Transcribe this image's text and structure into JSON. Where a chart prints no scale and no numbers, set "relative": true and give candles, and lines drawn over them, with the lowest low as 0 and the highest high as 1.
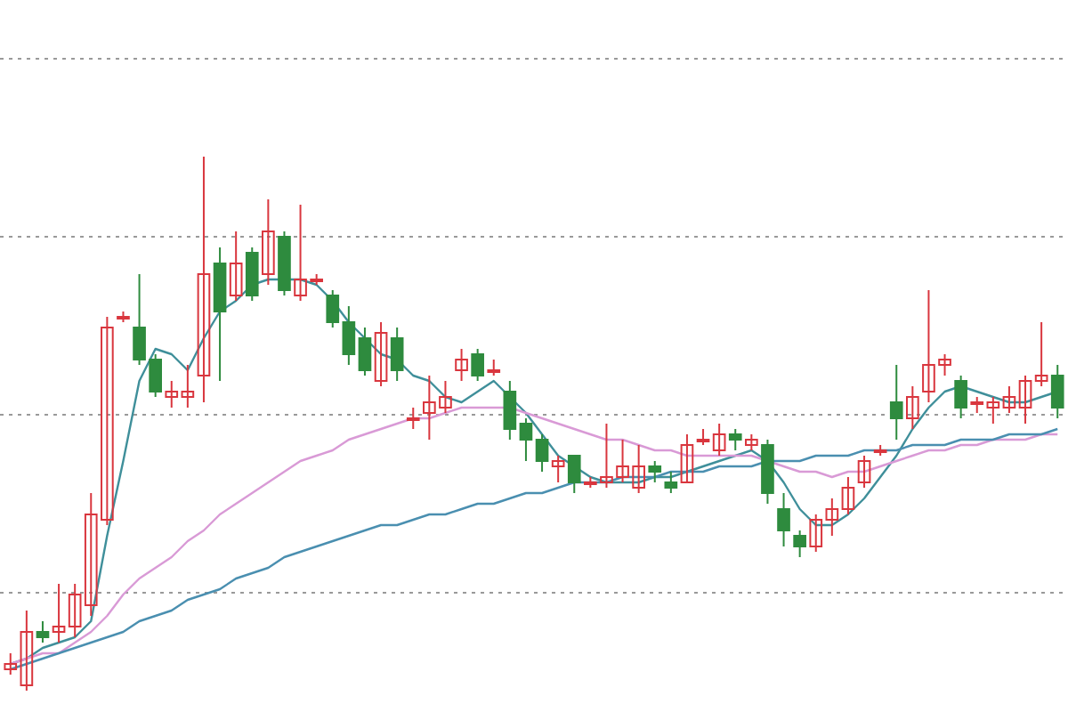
{
  "chart_data": {
    "type": "candlestick",
    "relative": true,
    "grid": "y",
    "marker": "none",
    "categories": [
      null,
      null,
      null,
      null,
      null,
      null,
      null,
      null,
      null,
      null,
      null,
      null,
      null,
      null,
      null,
      null,
      null,
      null,
      null,
      null,
      null,
      null,
      null,
      null,
      null,
      null,
      null,
      null,
      null,
      null,
      null,
      null,
      null,
      null,
      null,
      null,
      null,
      null,
      null,
      null,
      null,
      null,
      null,
      null,
      null,
      null,
      null,
      null,
      null,
      null,
      null,
      null,
      null,
      null,
      null,
      null,
      null,
      null,
      null,
      null,
      null,
      null,
      null,
      null,
      null,
      null
    ],
    "ohlc": [
      [
        0.04,
        0.07,
        0.03,
        0.05
      ],
      [
        0.01,
        0.15,
        0,
        0.11
      ],
      [
        0.11,
        0.13,
        0.09,
        0.1
      ],
      [
        0.11,
        0.2,
        0.09,
        0.12
      ],
      [
        0.12,
        0.2,
        0.1,
        0.18
      ],
      [
        0.16,
        0.37,
        0.14,
        0.33
      ],
      [
        0.32,
        0.7,
        0.31,
        0.68
      ],
      [
        0.7,
        0.71,
        0.69,
        0.7
      ],
      [
        0.68,
        0.78,
        0.61,
        0.62
      ],
      [
        0.62,
        0.63,
        0.55,
        0.56
      ],
      [
        0.55,
        0.58,
        0.53,
        0.56
      ],
      [
        0.55,
        0.61,
        0.53,
        0.56
      ],
      [
        0.59,
        1,
        0.54,
        0.78
      ],
      [
        0.8,
        0.83,
        0.58,
        0.71
      ],
      [
        0.74,
        0.86,
        0.73,
        0.8
      ],
      [
        0.82,
        0.83,
        0.73,
        0.74
      ],
      [
        0.78,
        0.92,
        0.76,
        0.86
      ],
      [
        0.85,
        0.86,
        0.74,
        0.75
      ],
      [
        0.74,
        0.91,
        0.73,
        0.77
      ],
      [
        0.77,
        0.78,
        0.76,
        0.77
      ],
      [
        0.74,
        0.75,
        0.68,
        0.69
      ],
      [
        0.69,
        0.72,
        0.61,
        0.63
      ],
      [
        0.66,
        0.68,
        0.59,
        0.6
      ],
      [
        0.58,
        0.69,
        0.57,
        0.67
      ],
      [
        0.66,
        0.68,
        0.58,
        0.6
      ],
      [
        0.51,
        0.53,
        0.49,
        0.51
      ],
      [
        0.52,
        0.59,
        0.47,
        0.54
      ],
      [
        0.53,
        0.58,
        0.52,
        0.55
      ],
      [
        0.6,
        0.64,
        0.58,
        0.62
      ],
      [
        0.63,
        0.64,
        0.58,
        0.59
      ],
      [
        0.6,
        0.62,
        0.59,
        0.6
      ],
      [
        0.56,
        0.58,
        0.47,
        0.49
      ],
      [
        0.5,
        0.51,
        0.43,
        0.47
      ],
      [
        0.47,
        0.48,
        0.41,
        0.43
      ],
      [
        0.42,
        0.44,
        0.39,
        0.43
      ],
      [
        0.44,
        0.44,
        0.37,
        0.39
      ],
      [
        0.39,
        0.4,
        0.38,
        0.39
      ],
      [
        0.39,
        0.5,
        0.38,
        0.4
      ],
      [
        0.4,
        0.47,
        0.39,
        0.42
      ],
      [
        0.38,
        0.46,
        0.37,
        0.42
      ],
      [
        0.42,
        0.43,
        0.39,
        0.41
      ],
      [
        0.39,
        0.41,
        0.37,
        0.38
      ],
      [
        0.39,
        0.48,
        0.39,
        0.46
      ],
      [
        0.47,
        0.49,
        0.46,
        0.47
      ],
      [
        0.45,
        0.5,
        0.44,
        0.48
      ],
      [
        0.48,
        0.49,
        0.45,
        0.47
      ],
      [
        0.46,
        0.48,
        0.45,
        0.47
      ],
      [
        0.46,
        0.47,
        0.35,
        0.37
      ],
      [
        0.34,
        0.37,
        0.27,
        0.3
      ],
      [
        0.29,
        0.3,
        0.25,
        0.27
      ],
      [
        0.27,
        0.33,
        0.26,
        0.32
      ],
      [
        0.32,
        0.36,
        0.29,
        0.34
      ],
      [
        0.34,
        0.4,
        0.33,
        0.38
      ],
      [
        0.39,
        0.44,
        0.38,
        0.43
      ],
      [
        0.45,
        0.46,
        0.44,
        0.45
      ],
      [
        0.54,
        0.61,
        0.47,
        0.51
      ],
      [
        0.51,
        0.57,
        0.49,
        0.55
      ],
      [
        0.56,
        0.75,
        0.54,
        0.61
      ],
      [
        0.61,
        0.63,
        0.59,
        0.62
      ],
      [
        0.58,
        0.59,
        0.51,
        0.53
      ],
      [
        0.54,
        0.55,
        0.52,
        0.54
      ],
      [
        0.53,
        0.55,
        0.5,
        0.54
      ],
      [
        0.53,
        0.57,
        0.52,
        0.55
      ],
      [
        0.53,
        0.59,
        0.5,
        0.58
      ],
      [
        0.58,
        0.69,
        0.57,
        0.59
      ],
      [
        0.59,
        0.61,
        0.51,
        0.53
      ]
    ],
    "series": [
      {
        "type": "line",
        "color": "#3f8f9a",
        "values": [
          0.05,
          0.06,
          0.08,
          0.09,
          0.1,
          0.13,
          0.29,
          0.43,
          0.58,
          0.64,
          0.63,
          0.6,
          0.66,
          0.71,
          0.73,
          0.76,
          0.77,
          0.77,
          0.77,
          0.76,
          0.73,
          0.69,
          0.66,
          0.63,
          0.62,
          0.59,
          0.58,
          0.55,
          0.54,
          0.56,
          0.58,
          0.55,
          0.52,
          0.48,
          0.44,
          0.42,
          0.4,
          0.39,
          0.39,
          0.39,
          0.4,
          0.4,
          0.41,
          0.42,
          0.43,
          0.44,
          0.45,
          0.43,
          0.39,
          0.34,
          0.31,
          0.31,
          0.33,
          0.36,
          0.4,
          0.44,
          0.49,
          0.53,
          0.56,
          0.57,
          0.56,
          0.55,
          0.54,
          0.54,
          0.55,
          0.56
        ]
      },
      {
        "type": "line",
        "color": "#d99ad6",
        "values": [
          0.05,
          0.06,
          0.07,
          0.07,
          0.09,
          0.11,
          0.14,
          0.18,
          0.21,
          0.23,
          0.25,
          0.28,
          0.3,
          0.33,
          0.35,
          0.37,
          0.39,
          0.41,
          0.43,
          0.44,
          0.45,
          0.47,
          0.48,
          0.49,
          0.5,
          0.51,
          0.51,
          0.52,
          0.53,
          0.53,
          0.53,
          0.53,
          0.52,
          0.51,
          0.5,
          0.49,
          0.48,
          0.47,
          0.47,
          0.46,
          0.45,
          0.45,
          0.44,
          0.44,
          0.44,
          0.44,
          0.44,
          0.43,
          0.42,
          0.41,
          0.41,
          0.4,
          0.41,
          0.41,
          0.42,
          0.43,
          0.44,
          0.45,
          0.45,
          0.46,
          0.46,
          0.47,
          0.47,
          0.47,
          0.48,
          0.48
        ]
      },
      {
        "type": "line",
        "color": "#4a8fb0",
        "values": [
          0.04,
          0.05,
          0.06,
          0.07,
          0.08,
          0.09,
          0.1,
          0.11,
          0.13,
          0.14,
          0.15,
          0.17,
          0.18,
          0.19,
          0.21,
          0.22,
          0.23,
          0.25,
          0.26,
          0.27,
          0.28,
          0.29,
          0.3,
          0.31,
          0.31,
          0.32,
          0.33,
          0.33,
          0.34,
          0.35,
          0.35,
          0.36,
          0.37,
          0.37,
          0.38,
          0.39,
          0.39,
          0.39,
          0.4,
          0.4,
          0.4,
          0.41,
          0.41,
          0.41,
          0.42,
          0.42,
          0.42,
          0.43,
          0.43,
          0.43,
          0.44,
          0.44,
          0.44,
          0.45,
          0.45,
          0.45,
          0.46,
          0.46,
          0.46,
          0.47,
          0.47,
          0.47,
          0.48,
          0.48,
          0.48,
          0.49
        ]
      }
    ]
  }
}
